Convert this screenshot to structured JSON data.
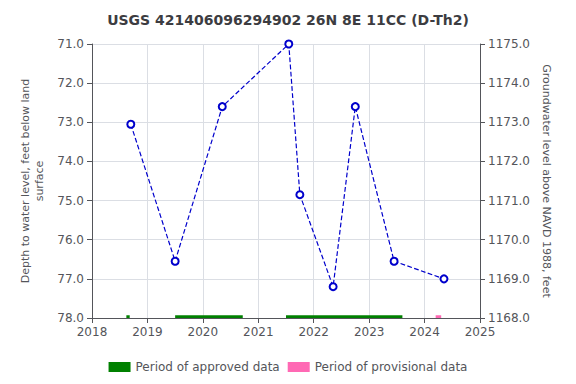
{
  "chart_data": {
    "type": "line",
    "title": "USGS 421406096294902 26N 8E 11CC (D-Th2)",
    "x": [
      2018.7,
      2019.5,
      2020.35,
      2021.55,
      2021.75,
      2022.35,
      2022.75,
      2023.45,
      2024.35
    ],
    "series": [
      {
        "type": "line",
        "color": "#0000cc",
        "marker": "circle",
        "line_style": "dashed",
        "values": [
          73.05,
          76.55,
          72.6,
          71.0,
          74.85,
          77.2,
          72.6,
          76.55,
          77.0
        ]
      },
      {
        "type": "span",
        "name": "Period of approved data",
        "color": "#008000",
        "periods": [
          [
            2018.62,
            2018.68
          ],
          [
            2019.5,
            2020.72
          ],
          [
            2021.5,
            2023.6
          ]
        ],
        "y": 78.0,
        "half_height": 0.07
      },
      {
        "type": "span",
        "name": "Period of provisional data",
        "color": "#ff69b4",
        "periods": [
          [
            2024.2,
            2024.3
          ]
        ],
        "y": 78.0,
        "half_height": 0.07
      }
    ],
    "xlim": [
      2018.0,
      2025.0
    ],
    "xticks": [
      2018,
      2019,
      2020,
      2021,
      2022,
      2023,
      2024,
      2025
    ],
    "ylim": [
      78.0,
      71.0
    ],
    "yticks": [
      {
        "value": 71.0,
        "label": "71.0"
      },
      {
        "value": 72.0,
        "label": "72.0"
      },
      {
        "value": 73.0,
        "label": "73.0"
      },
      {
        "value": 74.0,
        "label": "74.0"
      },
      {
        "value": 75.0,
        "label": "75.0"
      },
      {
        "value": 76.0,
        "label": "76.0"
      },
      {
        "value": 77.0,
        "label": "77.0"
      },
      {
        "value": 78.0,
        "label": "78.0"
      }
    ],
    "y2lim": [
      1168.0,
      1175.0
    ],
    "y2ticks": [
      {
        "value": 1168.0,
        "label": "1168.0"
      },
      {
        "value": 1169.0,
        "label": "1169.0"
      },
      {
        "value": 1170.0,
        "label": "1170.0"
      },
      {
        "value": 1171.0,
        "label": "1171.0"
      },
      {
        "value": 1172.0,
        "label": "1172.0"
      },
      {
        "value": 1173.0,
        "label": "1173.0"
      },
      {
        "value": 1174.0,
        "label": "1174.0"
      },
      {
        "value": 1175.0,
        "label": "1175.0"
      }
    ],
    "ylabel": "Depth to water level, feet below land\nsurface",
    "y2label": "Groundwater level above NAVD 1988, feet",
    "grid": true,
    "legend": "bottom"
  }
}
